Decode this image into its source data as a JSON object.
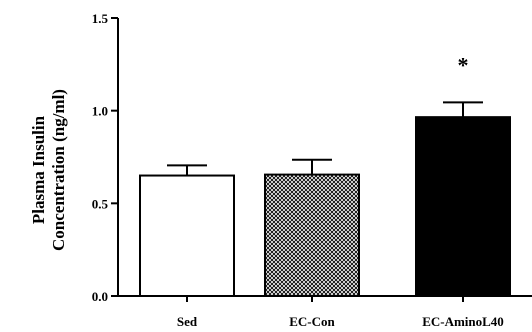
{
  "chart_data": {
    "type": "bar",
    "categories": [
      "Sed",
      "EC-Con",
      "EC-AminoL40"
    ],
    "values": [
      0.65,
      0.655,
      0.965
    ],
    "errors": [
      0.055,
      0.08,
      0.08
    ],
    "fills": [
      "#ffffff",
      "hatch",
      "#000000"
    ],
    "annotations": [
      "",
      "",
      "*"
    ],
    "ylabel_lines": [
      "Plasma Insulin",
      "Concentration (ng/ml)"
    ],
    "xlabel": "",
    "ylim": [
      0,
      1.5
    ],
    "yticks": [
      "0.0",
      "0.5",
      "1.0",
      "1.5"
    ],
    "grid": false
  }
}
